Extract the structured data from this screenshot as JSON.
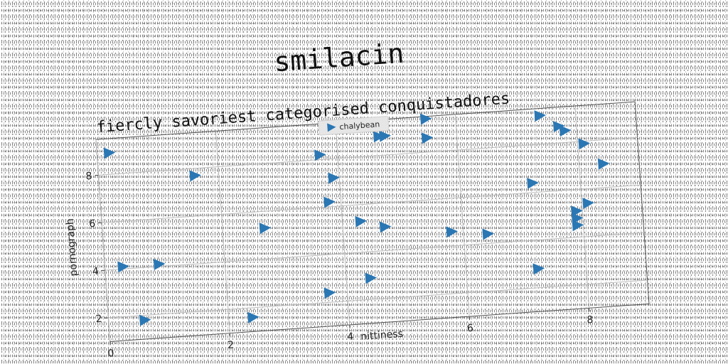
{
  "chart_data": {
    "type": "scatter",
    "title": "smilacin",
    "subtitle": "fiercly savoriest categorised conquistadores",
    "xlabel": "nittiness",
    "ylabel": "pornograph",
    "xlim": [
      0,
      9
    ],
    "ylim": [
      1,
      9.5
    ],
    "xticks": [
      "0",
      "2",
      "4",
      "6",
      "8"
    ],
    "yticks": [
      "2",
      "4",
      "6",
      "8"
    ],
    "grid": true,
    "legend_position": "top-center",
    "marker": "triangle-right",
    "color": "#2a77b4",
    "series": [
      {
        "name": "chalybean",
        "points": [
          [
            0.2,
            8.9
          ],
          [
            1.6,
            7.7
          ],
          [
            3.7,
            8.2
          ],
          [
            3.9,
            7.2
          ],
          [
            3.8,
            6.2
          ],
          [
            4.7,
            8.8
          ],
          [
            4.8,
            8.8
          ],
          [
            5.5,
            8.6
          ],
          [
            5.5,
            9.4
          ],
          [
            7.4,
            9.2
          ],
          [
            7.7,
            8.7
          ],
          [
            7.8,
            8.5
          ],
          [
            8.1,
            7.9
          ],
          [
            8.4,
            7.0
          ],
          [
            7.2,
            6.4
          ],
          [
            8.1,
            5.4
          ],
          [
            7.9,
            5.1
          ],
          [
            7.9,
            4.8
          ],
          [
            7.9,
            4.5
          ],
          [
            2.7,
            5.3
          ],
          [
            4.3,
            5.3
          ],
          [
            4.7,
            5.0
          ],
          [
            5.8,
            4.6
          ],
          [
            6.4,
            4.4
          ],
          [
            0.3,
            4.1
          ],
          [
            0.9,
            4.1
          ],
          [
            0.6,
            1.8
          ],
          [
            2.4,
            1.6
          ],
          [
            3.7,
            2.4
          ],
          [
            4.4,
            2.9
          ],
          [
            7.2,
            2.8
          ]
        ]
      }
    ]
  }
}
